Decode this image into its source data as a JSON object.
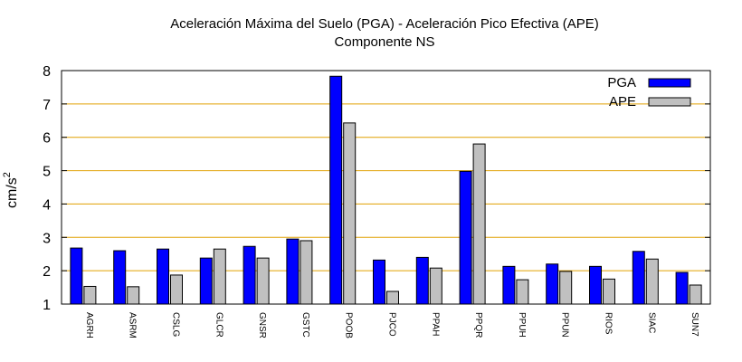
{
  "chart_data": {
    "type": "bar",
    "title": "Aceleración Máxima del Suelo (PGA) -  Aceleración Pico Efectiva (APE)",
    "subtitle": "Componente NS",
    "ylabel_base": "cm/s",
    "ylabel_exp": "2",
    "ylim": [
      1,
      8
    ],
    "yticks": [
      1,
      2,
      3,
      4,
      5,
      6,
      7,
      8
    ],
    "grid": true,
    "legend_position": "top-right",
    "categories": [
      "AGRH",
      "ASRM",
      "CSLG",
      "GLCR",
      "GNSR",
      "GSTC",
      "POOB",
      "PJCO",
      "PPAH",
      "PPQR",
      "PPUH",
      "PPUN",
      "RIOS",
      "SIAC",
      "SUN7"
    ],
    "series": [
      {
        "name": "PGA",
        "color": "#0000ff",
        "values": [
          2.68,
          2.6,
          2.65,
          2.38,
          2.73,
          2.95,
          7.83,
          2.32,
          2.4,
          4.98,
          2.13,
          2.2,
          2.13,
          2.58,
          1.95
        ]
      },
      {
        "name": "APE",
        "color": "#c0c0c0",
        "values": [
          1.53,
          1.52,
          1.87,
          2.65,
          2.38,
          2.9,
          6.43,
          1.38,
          2.08,
          5.8,
          1.73,
          1.98,
          1.75,
          2.35,
          1.57
        ]
      }
    ],
    "grid_color": "#e0a000"
  }
}
